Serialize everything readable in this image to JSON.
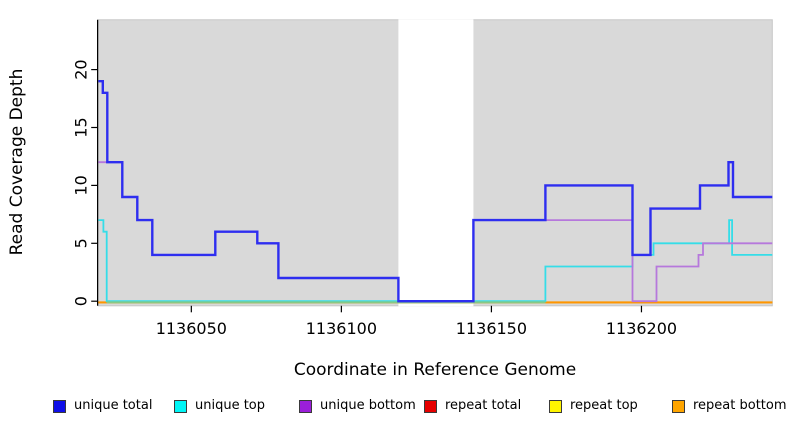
{
  "chart_data": {
    "type": "line",
    "step": true,
    "title": "",
    "xlabel": "Coordinate in Reference Genome",
    "ylabel": "Read Coverage Depth",
    "xlim": [
      1136019,
      1136243.6
    ],
    "ylim": [
      0,
      24.3
    ],
    "xticks": [
      1136050,
      1136100,
      1136150,
      1136200
    ],
    "yticks": [
      0,
      5,
      10,
      15,
      20
    ],
    "grid": false,
    "plot_background": "#d9d9d9",
    "gap_region": {
      "from": 1136119,
      "to": 1136144,
      "color": "#ffffff"
    },
    "legend_position": "bottom",
    "series": [
      {
        "name": "repeat total",
        "color": "#e60000",
        "line_color": "#e60000",
        "width": 1.8,
        "points": [
          [
            1136019,
            0
          ],
          [
            1136243.6,
            0
          ]
        ]
      },
      {
        "name": "repeat top",
        "color": "#fff500",
        "line_color": "#fff500",
        "width": 1.8,
        "points": [
          [
            1136019,
            0
          ],
          [
            1136243.6,
            0
          ]
        ]
      },
      {
        "name": "repeat bottom",
        "color": "#ffa500",
        "line_color": "#ff9600",
        "width": 2,
        "points": [
          [
            1136019,
            0
          ],
          [
            1136243.6,
            0
          ]
        ]
      },
      {
        "name": "unique top",
        "color": "#00f5f5",
        "line_color": "#35dde8",
        "width": 1.8,
        "points": [
          [
            1136019,
            7
          ],
          [
            1136020.7,
            6
          ],
          [
            1136021.8,
            0
          ],
          [
            1136168,
            3
          ],
          [
            1136197,
            4
          ],
          [
            1136204,
            5
          ],
          [
            1136229.2,
            7
          ],
          [
            1136230.2,
            4
          ],
          [
            1136243.6,
            4
          ]
        ]
      },
      {
        "name": "unique bottom",
        "color": "#9b1fd9",
        "line_color": "#b678dc",
        "width": 1.8,
        "points": [
          [
            1136019,
            12
          ],
          [
            1136027,
            9
          ],
          [
            1136032,
            7
          ],
          [
            1136037,
            4
          ],
          [
            1136058,
            6
          ],
          [
            1136072,
            5
          ],
          [
            1136079,
            2
          ],
          [
            1136119,
            0
          ],
          [
            1136144,
            7
          ],
          [
            1136197,
            0
          ],
          [
            1136205,
            3
          ],
          [
            1136219,
            4
          ],
          [
            1136220.5,
            5
          ],
          [
            1136243.6,
            5
          ]
        ]
      },
      {
        "name": "unique total",
        "color": "#0f0fe8",
        "line_color": "#2e2ef0",
        "width": 2.4,
        "points": [
          [
            1136019,
            19
          ],
          [
            1136020.5,
            18
          ],
          [
            1136022,
            12
          ],
          [
            1136027,
            9
          ],
          [
            1136032,
            7
          ],
          [
            1136037,
            4
          ],
          [
            1136058,
            6
          ],
          [
            1136072,
            5
          ],
          [
            1136079,
            2
          ],
          [
            1136119,
            0
          ],
          [
            1136144,
            7
          ],
          [
            1136168,
            10
          ],
          [
            1136197,
            4
          ],
          [
            1136203,
            8
          ],
          [
            1136219.5,
            10
          ],
          [
            1136229,
            12
          ],
          [
            1136230.5,
            9
          ],
          [
            1136243.6,
            9
          ]
        ]
      }
    ],
    "baseline_blend_segment": {
      "from": 1136021.8,
      "to": 1136168,
      "color": "#86c886",
      "note": "overlap of zero-depth repeat-top/unique-top lines renders as light green"
    }
  },
  "legend": {
    "items": [
      {
        "label": "unique total",
        "swatch_color": "#0f0fe8"
      },
      {
        "label": "unique top",
        "swatch_color": "#00f5f5"
      },
      {
        "label": "unique bottom",
        "swatch_color": "#9b1fd9"
      },
      {
        "label": "repeat total",
        "swatch_color": "#e60000"
      },
      {
        "label": "repeat top",
        "swatch_color": "#fff500"
      },
      {
        "label": "repeat bottom",
        "swatch_color": "#ffa500"
      }
    ]
  }
}
